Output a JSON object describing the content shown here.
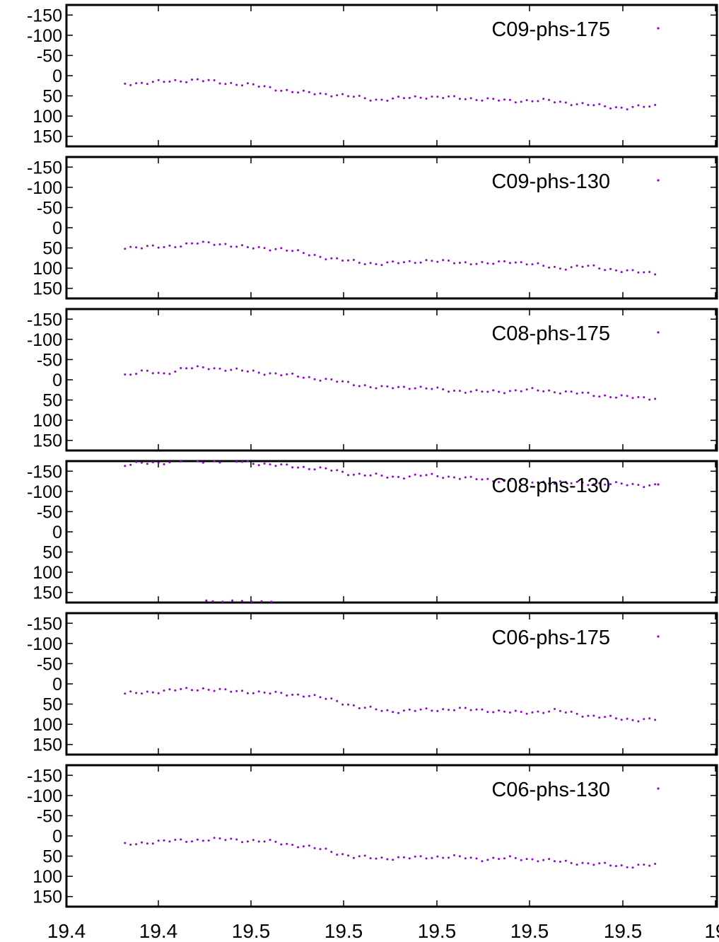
{
  "chart_data": {
    "type": "scatter",
    "layout": "stacked-panels",
    "x_tick_labels": [
      "19.4",
      "19.4",
      "19.5",
      "19.5",
      "19.5",
      "19.5",
      "19.5",
      "19"
    ],
    "y_tick_labels": [
      "-150",
      "-100",
      "-50",
      "0",
      "50",
      "100",
      "150"
    ],
    "y_ticks": [
      -150,
      -100,
      -50,
      0,
      50,
      100,
      150
    ],
    "ylim": [
      -175,
      175
    ],
    "y_reversed": true,
    "xlim": [
      0,
      1
    ],
    "x_note": "x positions are fractions of the shared x-axis span",
    "color": "#9400d3",
    "grid": false,
    "legend_position": "top-right",
    "panels": [
      {
        "name": "C09-phs-175",
        "anchors": [
          [
            0.09,
            20
          ],
          [
            0.15,
            15
          ],
          [
            0.2,
            10
          ],
          [
            0.24,
            18
          ],
          [
            0.28,
            22
          ],
          [
            0.35,
            40
          ],
          [
            0.42,
            48
          ],
          [
            0.48,
            60
          ],
          [
            0.55,
            52
          ],
          [
            0.6,
            55
          ],
          [
            0.68,
            62
          ],
          [
            0.74,
            62
          ],
          [
            0.8,
            72
          ],
          [
            0.86,
            80
          ],
          [
            0.905,
            75
          ]
        ],
        "outliers": []
      },
      {
        "name": "C09-phs-130",
        "anchors": [
          [
            0.09,
            48
          ],
          [
            0.15,
            48
          ],
          [
            0.2,
            38
          ],
          [
            0.24,
            40
          ],
          [
            0.28,
            50
          ],
          [
            0.33,
            52
          ],
          [
            0.37,
            65
          ],
          [
            0.42,
            80
          ],
          [
            0.48,
            90
          ],
          [
            0.55,
            82
          ],
          [
            0.6,
            85
          ],
          [
            0.65,
            90
          ],
          [
            0.68,
            82
          ],
          [
            0.72,
            92
          ],
          [
            0.76,
            100
          ],
          [
            0.8,
            95
          ],
          [
            0.86,
            108
          ],
          [
            0.905,
            112
          ]
        ],
        "outliers": []
      },
      {
        "name": "C08-phs-175",
        "anchors": [
          [
            0.09,
            -12
          ],
          [
            0.12,
            -20
          ],
          [
            0.15,
            -15
          ],
          [
            0.18,
            -28
          ],
          [
            0.22,
            -30
          ],
          [
            0.25,
            -25
          ],
          [
            0.3,
            -18
          ],
          [
            0.35,
            -10
          ],
          [
            0.4,
            0
          ],
          [
            0.44,
            10
          ],
          [
            0.48,
            20
          ],
          [
            0.53,
            18
          ],
          [
            0.58,
            25
          ],
          [
            0.63,
            30
          ],
          [
            0.68,
            28
          ],
          [
            0.72,
            25
          ],
          [
            0.76,
            30
          ],
          [
            0.8,
            35
          ],
          [
            0.84,
            42
          ],
          [
            0.905,
            45
          ]
        ],
        "outliers": []
      },
      {
        "name": "C08-phs-130",
        "anchors": [
          [
            0.09,
            -165
          ],
          [
            0.12,
            -170
          ],
          [
            0.15,
            -172
          ],
          [
            0.18,
            -175
          ],
          [
            0.21,
            -175
          ],
          [
            0.25,
            -175
          ],
          [
            0.28,
            -172
          ],
          [
            0.32,
            -165
          ],
          [
            0.36,
            -160
          ],
          [
            0.4,
            -155
          ],
          [
            0.43,
            -145
          ],
          [
            0.47,
            -140
          ],
          [
            0.5,
            -135
          ],
          [
            0.55,
            -140
          ],
          [
            0.6,
            -135
          ],
          [
            0.65,
            -128
          ],
          [
            0.7,
            -125
          ],
          [
            0.75,
            -122
          ],
          [
            0.8,
            -120
          ],
          [
            0.85,
            -118
          ],
          [
            0.905,
            -115
          ]
        ],
        "outliers": [
          [
            0.215,
            170
          ],
          [
            0.225,
            172
          ],
          [
            0.24,
            173
          ],
          [
            0.255,
            170
          ],
          [
            0.27,
            171
          ],
          [
            0.285,
            173
          ],
          [
            0.3,
            172
          ],
          [
            0.315,
            173
          ]
        ]
      },
      {
        "name": "C06-phs-175",
        "anchors": [
          [
            0.09,
            25
          ],
          [
            0.13,
            20
          ],
          [
            0.17,
            15
          ],
          [
            0.21,
            12
          ],
          [
            0.25,
            18
          ],
          [
            0.29,
            20
          ],
          [
            0.33,
            25
          ],
          [
            0.37,
            28
          ],
          [
            0.41,
            40
          ],
          [
            0.45,
            58
          ],
          [
            0.5,
            68
          ],
          [
            0.55,
            65
          ],
          [
            0.6,
            62
          ],
          [
            0.65,
            66
          ],
          [
            0.7,
            72
          ],
          [
            0.75,
            66
          ],
          [
            0.8,
            78
          ],
          [
            0.86,
            88
          ],
          [
            0.905,
            88
          ]
        ],
        "outliers": []
      },
      {
        "name": "C06-phs-130",
        "anchors": [
          [
            0.09,
            22
          ],
          [
            0.13,
            15
          ],
          [
            0.17,
            12
          ],
          [
            0.21,
            10
          ],
          [
            0.25,
            8
          ],
          [
            0.28,
            12
          ],
          [
            0.32,
            15
          ],
          [
            0.36,
            25
          ],
          [
            0.4,
            35
          ],
          [
            0.44,
            52
          ],
          [
            0.48,
            55
          ],
          [
            0.52,
            55
          ],
          [
            0.56,
            52
          ],
          [
            0.6,
            52
          ],
          [
            0.64,
            58
          ],
          [
            0.68,
            55
          ],
          [
            0.72,
            58
          ],
          [
            0.76,
            64
          ],
          [
            0.8,
            68
          ],
          [
            0.86,
            75
          ],
          [
            0.905,
            72
          ]
        ],
        "outliers": []
      }
    ]
  }
}
